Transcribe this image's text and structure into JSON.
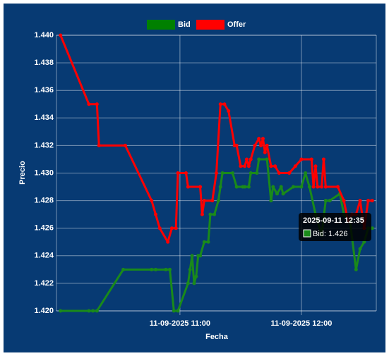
{
  "chart_data": {
    "type": "line",
    "x_label": "Fecha",
    "y_label": "Precio",
    "xlim": [
      "2025-09-11 09:59",
      "2025-09-11 12:37"
    ],
    "xticks": [
      {
        "value": "2025-09-11 11:00",
        "label": "11-09-2025 11:00"
      },
      {
        "value": "2025-09-11 12:00",
        "label": "11-09-2025 12:00"
      }
    ],
    "ylim": [
      1.42,
      1.44
    ],
    "yticks": [
      {
        "value": 1.42,
        "label": "1.420"
      },
      {
        "value": 1.422,
        "label": "1.422"
      },
      {
        "value": 1.424,
        "label": "1.424"
      },
      {
        "value": 1.426,
        "label": "1.426"
      },
      {
        "value": 1.428,
        "label": "1.428"
      },
      {
        "value": 1.43,
        "label": "1.430"
      },
      {
        "value": 1.432,
        "label": "1.432"
      },
      {
        "value": 1.434,
        "label": "1.434"
      },
      {
        "value": 1.436,
        "label": "1.436"
      },
      {
        "value": 1.438,
        "label": "1.438"
      },
      {
        "value": 1.44,
        "label": "1.440"
      }
    ],
    "grid": true,
    "legend": "top",
    "series": [
      {
        "name": "Bid",
        "color": "#1a8a1a",
        "x": [
          "2025-09-11 10:01",
          "2025-09-11 10:15",
          "2025-09-11 10:17",
          "2025-09-11 10:19",
          "2025-09-11 10:32",
          "2025-09-11 10:46",
          "2025-09-11 10:48",
          "2025-09-11 10:53",
          "2025-09-11 10:55",
          "2025-09-11 10:57",
          "2025-09-11 10:59",
          "2025-09-11 11:04",
          "2025-09-11 11:05",
          "2025-09-11 11:06",
          "2025-09-11 11:07",
          "2025-09-11 11:08",
          "2025-09-11 11:09",
          "2025-09-11 11:10",
          "2025-09-11 11:12",
          "2025-09-11 11:14",
          "2025-09-11 11:15",
          "2025-09-11 11:17",
          "2025-09-11 11:19",
          "2025-09-11 11:20",
          "2025-09-11 11:21",
          "2025-09-11 11:26",
          "2025-09-11 11:28",
          "2025-09-11 11:31",
          "2025-09-11 11:32",
          "2025-09-11 11:34",
          "2025-09-11 11:35",
          "2025-09-11 11:38",
          "2025-09-11 11:39",
          "2025-09-11 11:43",
          "2025-09-11 11:45",
          "2025-09-11 11:46",
          "2025-09-11 11:48",
          "2025-09-11 11:50",
          "2025-09-11 11:51",
          "2025-09-11 11:56",
          "2025-09-11 12:00",
          "2025-09-11 12:02",
          "2025-09-11 12:04",
          "2025-09-11 12:07",
          "2025-09-11 12:10",
          "2025-09-11 12:12",
          "2025-09-11 12:14",
          "2025-09-11 12:19",
          "2025-09-11 12:21",
          "2025-09-11 12:24",
          "2025-09-11 12:27",
          "2025-09-11 12:29",
          "2025-09-11 12:31",
          "2025-09-11 12:33",
          "2025-09-11 12:35"
        ],
        "values": [
          1.42,
          1.42,
          1.42,
          1.42,
          1.423,
          1.423,
          1.423,
          1.423,
          1.423,
          1.42,
          1.42,
          1.422,
          1.423,
          1.424,
          1.422,
          1.4225,
          1.424,
          1.424,
          1.425,
          1.425,
          1.427,
          1.427,
          1.428,
          1.429,
          1.43,
          1.43,
          1.429,
          1.429,
          1.429,
          1.429,
          1.43,
          1.43,
          1.431,
          1.431,
          1.428,
          1.429,
          1.4285,
          1.429,
          1.4285,
          1.429,
          1.429,
          1.43,
          1.429,
          1.427,
          1.4255,
          1.428,
          1.428,
          1.4285,
          1.427,
          1.4265,
          1.423,
          1.4245,
          1.425,
          1.426,
          1.426
        ]
      },
      {
        "name": "Offer",
        "color": "#ff0000",
        "x": [
          "2025-09-11 10:01",
          "2025-09-11 10:15",
          "2025-09-11 10:19",
          "2025-09-11 10:20",
          "2025-09-11 10:33",
          "2025-09-11 10:46",
          "2025-09-11 10:48",
          "2025-09-11 10:50",
          "2025-09-11 10:54",
          "2025-09-11 10:56",
          "2025-09-11 10:58",
          "2025-09-11 10:59",
          "2025-09-11 11:03",
          "2025-09-11 11:04",
          "2025-09-11 11:10",
          "2025-09-11 11:11",
          "2025-09-11 11:12",
          "2025-09-11 11:16",
          "2025-09-11 11:18",
          "2025-09-11 11:20",
          "2025-09-11 11:22",
          "2025-09-11 11:24",
          "2025-09-11 11:27",
          "2025-09-11 11:28",
          "2025-09-11 11:30",
          "2025-09-11 11:32",
          "2025-09-11 11:33",
          "2025-09-11 11:34",
          "2025-09-11 11:35",
          "2025-09-11 11:37",
          "2025-09-11 11:39",
          "2025-09-11 11:40",
          "2025-09-11 11:41",
          "2025-09-11 11:42",
          "2025-09-11 11:43",
          "2025-09-11 11:45",
          "2025-09-11 11:47",
          "2025-09-11 11:49",
          "2025-09-11 11:54",
          "2025-09-11 11:57",
          "2025-09-11 12:00",
          "2025-09-11 12:05",
          "2025-09-11 12:06",
          "2025-09-11 12:07",
          "2025-09-11 12:08",
          "2025-09-11 12:10",
          "2025-09-11 12:11",
          "2025-09-11 12:12",
          "2025-09-11 12:18",
          "2025-09-11 12:21",
          "2025-09-11 12:23",
          "2025-09-11 12:25",
          "2025-09-11 12:27",
          "2025-09-11 12:29",
          "2025-09-11 12:31",
          "2025-09-11 12:33",
          "2025-09-11 12:35"
        ],
        "values": [
          1.44,
          1.435,
          1.435,
          1.432,
          1.432,
          1.428,
          1.427,
          1.426,
          1.425,
          1.426,
          1.426,
          1.43,
          1.43,
          1.429,
          1.429,
          1.427,
          1.428,
          1.428,
          1.43,
          1.435,
          1.435,
          1.4345,
          1.432,
          1.432,
          1.4305,
          1.4305,
          1.431,
          1.4305,
          1.431,
          1.432,
          1.4325,
          1.432,
          1.4325,
          1.4315,
          1.432,
          1.4305,
          1.4305,
          1.43,
          1.43,
          1.4305,
          1.431,
          1.431,
          1.429,
          1.4305,
          1.429,
          1.429,
          1.431,
          1.429,
          1.429,
          1.428,
          1.4265,
          1.427,
          1.427,
          1.428,
          1.426,
          1.428,
          1.428
        ]
      }
    ],
    "tooltip": {
      "title": "2025-09-11 12:35",
      "label": "Bid: 1.426",
      "series": 0
    }
  }
}
